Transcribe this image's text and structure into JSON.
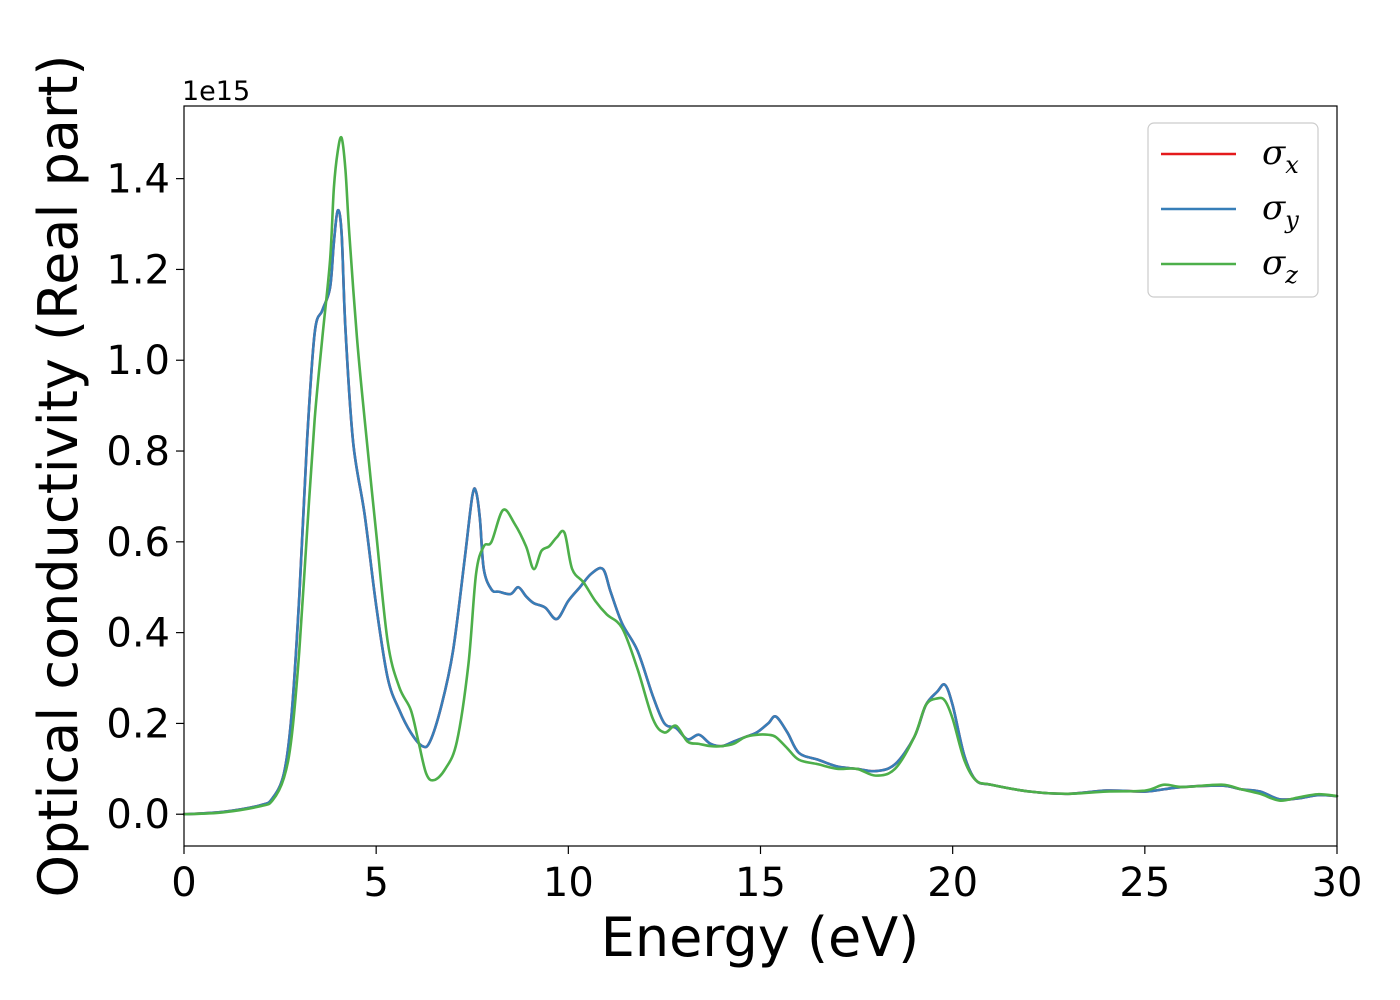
{
  "chart_data": {
    "type": "line",
    "xlabel": "Energy (eV)",
    "ylabel": "Optical conductivity (Real part)",
    "y_offset_label": "1e15",
    "xlim": [
      0,
      30
    ],
    "ylim": [
      -0.07,
      1.56
    ],
    "xticks": [
      0,
      5,
      10,
      15,
      20,
      25,
      30
    ],
    "xtick_labels": [
      "0",
      "5",
      "10",
      "15",
      "20",
      "25",
      "30"
    ],
    "yticks": [
      0.0,
      0.2,
      0.4,
      0.6,
      0.8,
      1.0,
      1.2,
      1.4
    ],
    "ytick_labels": [
      "0.0",
      "0.2",
      "0.4",
      "0.6",
      "0.8",
      "1.0",
      "1.2",
      "1.4"
    ],
    "grid": false,
    "legend_position": "top-right",
    "series": [
      {
        "name": "σx",
        "symbol": "σ",
        "subscript": "x",
        "color": "#e41a1c",
        "x": [
          0,
          1,
          2,
          2.3,
          2.6,
          2.8,
          3.0,
          3.2,
          3.4,
          3.6,
          3.8,
          3.9,
          4.0,
          4.1,
          4.2,
          4.4,
          4.7,
          5.0,
          5.3,
          5.6,
          5.9,
          6.2,
          6.4,
          6.7,
          7.0,
          7.3,
          7.5,
          7.6,
          7.7,
          7.8,
          8.0,
          8.2,
          8.5,
          8.7,
          8.9,
          9.1,
          9.4,
          9.7,
          10.0,
          10.3,
          10.6,
          10.9,
          11.1,
          11.4,
          11.8,
          12.2,
          12.5,
          12.8,
          13.1,
          13.4,
          13.7,
          14.0,
          14.3,
          14.6,
          14.9,
          15.2,
          15.4,
          15.7,
          16.0,
          16.5,
          17.0,
          17.5,
          18.0,
          18.5,
          19.0,
          19.3,
          19.6,
          19.8,
          20.0,
          20.3,
          20.6,
          21.0,
          22.0,
          23.0,
          24.0,
          25.0,
          25.5,
          26.0,
          27.0,
          27.5,
          28.0,
          28.5,
          29.0,
          29.5,
          30.0
        ],
        "y": [
          0.0,
          0.005,
          0.02,
          0.035,
          0.09,
          0.22,
          0.48,
          0.82,
          1.06,
          1.11,
          1.16,
          1.26,
          1.33,
          1.28,
          1.07,
          0.82,
          0.66,
          0.46,
          0.3,
          0.23,
          0.18,
          0.15,
          0.16,
          0.24,
          0.36,
          0.56,
          0.7,
          0.71,
          0.65,
          0.54,
          0.495,
          0.49,
          0.485,
          0.5,
          0.48,
          0.465,
          0.455,
          0.43,
          0.47,
          0.5,
          0.53,
          0.54,
          0.49,
          0.42,
          0.36,
          0.26,
          0.2,
          0.19,
          0.165,
          0.175,
          0.155,
          0.15,
          0.16,
          0.17,
          0.18,
          0.2,
          0.215,
          0.18,
          0.135,
          0.12,
          0.105,
          0.1,
          0.095,
          0.11,
          0.17,
          0.24,
          0.27,
          0.285,
          0.24,
          0.13,
          0.075,
          0.065,
          0.05,
          0.045,
          0.052,
          0.05,
          0.055,
          0.06,
          0.063,
          0.055,
          0.05,
          0.033,
          0.035,
          0.042,
          0.04
        ]
      },
      {
        "name": "σy",
        "symbol": "σ",
        "subscript": "y",
        "color": "#377eb8",
        "x": [
          0,
          1,
          2,
          2.3,
          2.6,
          2.8,
          3.0,
          3.2,
          3.4,
          3.6,
          3.8,
          3.9,
          4.0,
          4.1,
          4.2,
          4.4,
          4.7,
          5.0,
          5.3,
          5.6,
          5.9,
          6.2,
          6.4,
          6.7,
          7.0,
          7.3,
          7.5,
          7.6,
          7.7,
          7.8,
          8.0,
          8.2,
          8.5,
          8.7,
          8.9,
          9.1,
          9.4,
          9.7,
          10.0,
          10.3,
          10.6,
          10.9,
          11.1,
          11.4,
          11.8,
          12.2,
          12.5,
          12.8,
          13.1,
          13.4,
          13.7,
          14.0,
          14.3,
          14.6,
          14.9,
          15.2,
          15.4,
          15.7,
          16.0,
          16.5,
          17.0,
          17.5,
          18.0,
          18.5,
          19.0,
          19.3,
          19.6,
          19.8,
          20.0,
          20.3,
          20.6,
          21.0,
          22.0,
          23.0,
          24.0,
          25.0,
          25.5,
          26.0,
          27.0,
          27.5,
          28.0,
          28.5,
          29.0,
          29.5,
          30.0
        ],
        "y": [
          0.0,
          0.005,
          0.02,
          0.035,
          0.09,
          0.22,
          0.48,
          0.82,
          1.06,
          1.11,
          1.16,
          1.26,
          1.33,
          1.28,
          1.07,
          0.82,
          0.66,
          0.46,
          0.3,
          0.23,
          0.18,
          0.15,
          0.16,
          0.24,
          0.36,
          0.56,
          0.7,
          0.71,
          0.65,
          0.54,
          0.495,
          0.49,
          0.485,
          0.5,
          0.48,
          0.465,
          0.455,
          0.43,
          0.47,
          0.5,
          0.53,
          0.54,
          0.49,
          0.42,
          0.36,
          0.26,
          0.2,
          0.19,
          0.165,
          0.175,
          0.155,
          0.15,
          0.16,
          0.17,
          0.18,
          0.2,
          0.215,
          0.18,
          0.135,
          0.12,
          0.105,
          0.1,
          0.095,
          0.11,
          0.17,
          0.24,
          0.27,
          0.285,
          0.24,
          0.13,
          0.075,
          0.065,
          0.05,
          0.045,
          0.052,
          0.05,
          0.055,
          0.06,
          0.063,
          0.055,
          0.05,
          0.033,
          0.035,
          0.042,
          0.04
        ]
      },
      {
        "name": "σz",
        "symbol": "σ",
        "subscript": "z",
        "color": "#4daf4a",
        "x": [
          0,
          1,
          2,
          2.3,
          2.6,
          2.8,
          3.0,
          3.2,
          3.4,
          3.6,
          3.8,
          3.9,
          4.0,
          4.1,
          4.2,
          4.3,
          4.5,
          4.7,
          5.0,
          5.3,
          5.6,
          5.9,
          6.1,
          6.3,
          6.5,
          6.8,
          7.1,
          7.4,
          7.6,
          7.8,
          8.0,
          8.3,
          8.6,
          8.9,
          9.1,
          9.3,
          9.5,
          9.7,
          9.9,
          10.1,
          10.4,
          10.7,
          11.0,
          11.4,
          11.8,
          12.2,
          12.5,
          12.8,
          13.1,
          13.4,
          13.7,
          14.0,
          14.3,
          14.6,
          14.9,
          15.2,
          15.4,
          15.7,
          16.0,
          16.5,
          17.0,
          17.5,
          18.0,
          18.5,
          19.0,
          19.3,
          19.6,
          19.8,
          20.0,
          20.3,
          20.6,
          21.0,
          22.0,
          23.0,
          24.0,
          25.0,
          25.5,
          26.0,
          27.0,
          27.5,
          28.0,
          28.5,
          29.0,
          29.5,
          30.0
        ],
        "y": [
          0.0,
          0.004,
          0.018,
          0.03,
          0.08,
          0.17,
          0.36,
          0.62,
          0.87,
          1.05,
          1.22,
          1.38,
          1.46,
          1.49,
          1.42,
          1.28,
          1.05,
          0.87,
          0.62,
          0.38,
          0.28,
          0.23,
          0.16,
          0.09,
          0.075,
          0.1,
          0.16,
          0.33,
          0.53,
          0.59,
          0.6,
          0.67,
          0.64,
          0.59,
          0.54,
          0.58,
          0.59,
          0.61,
          0.62,
          0.54,
          0.51,
          0.47,
          0.44,
          0.41,
          0.32,
          0.21,
          0.18,
          0.195,
          0.16,
          0.155,
          0.15,
          0.15,
          0.155,
          0.17,
          0.175,
          0.175,
          0.17,
          0.145,
          0.12,
          0.11,
          0.1,
          0.1,
          0.085,
          0.1,
          0.17,
          0.24,
          0.255,
          0.25,
          0.21,
          0.12,
          0.075,
          0.065,
          0.05,
          0.045,
          0.05,
          0.052,
          0.065,
          0.06,
          0.065,
          0.055,
          0.045,
          0.03,
          0.037,
          0.044,
          0.04
        ]
      }
    ]
  }
}
